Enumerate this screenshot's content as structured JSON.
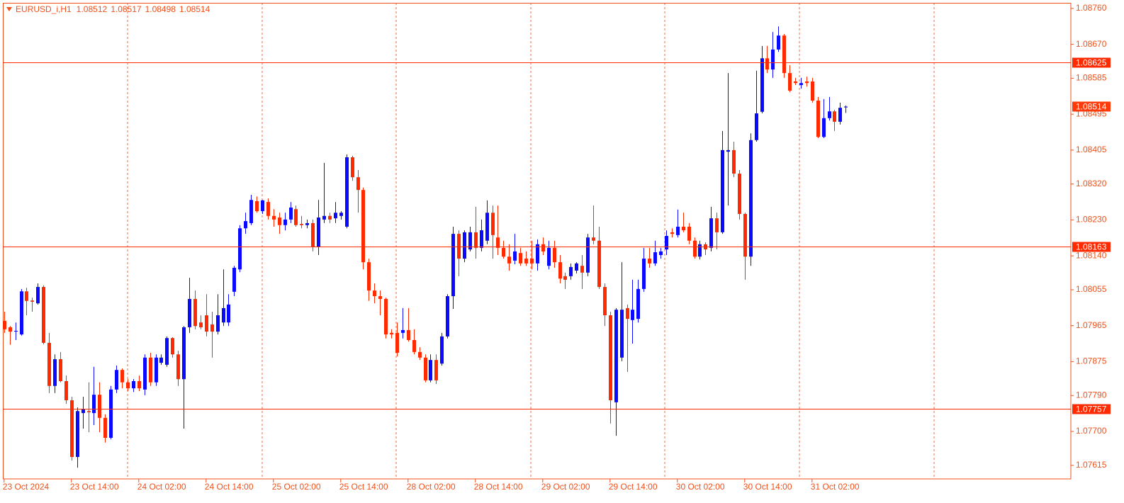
{
  "chart_data": {
    "type": "candlestick",
    "title": "EURUSD_i,H1",
    "up_color": "#0a0aff",
    "down_color": "#ff2a00",
    "level_color": "#ff2a00",
    "ylim": [
      1.07581,
      1.08774
    ],
    "yticks": [
      {
        "value": 1.0876,
        "label": "1.08760"
      },
      {
        "value": 1.0867,
        "label": "1.08670"
      },
      1.08585,
      1.08495,
      1.08405,
      {
        "value": 1.0832,
        "label": "1.08320"
      },
      {
        "value": 1.0823,
        "label": "1.08230"
      },
      {
        "value": 1.0814,
        "label": "1.08140"
      },
      1.08055,
      1.07965,
      1.07875,
      {
        "value": 1.0779,
        "label": "1.07790"
      },
      {
        "value": 1.077,
        "label": "1.07700"
      },
      1.07615
    ],
    "levels": [
      1.08625,
      1.08163,
      1.07757
    ],
    "categories": [
      "23 Oct 2024",
      null,
      null,
      null,
      null,
      null,
      null,
      null,
      null,
      null,
      null,
      null,
      "23 Oct 14:00",
      null,
      null,
      null,
      null,
      null,
      null,
      null,
      null,
      null,
      null,
      null,
      "24 Oct 02:00",
      null,
      null,
      null,
      null,
      null,
      null,
      null,
      null,
      null,
      null,
      null,
      "24 Oct 14:00",
      null,
      null,
      null,
      null,
      null,
      null,
      null,
      null,
      null,
      null,
      null,
      "25 Oct 02:00",
      null,
      null,
      null,
      null,
      null,
      null,
      null,
      null,
      null,
      null,
      null,
      "25 Oct 14:00",
      null,
      null,
      null,
      null,
      null,
      null,
      null,
      null,
      null,
      null,
      null,
      "28 Oct 02:00",
      null,
      null,
      null,
      null,
      null,
      null,
      null,
      null,
      null,
      null,
      null,
      "28 Oct 14:00",
      null,
      null,
      null,
      null,
      null,
      null,
      null,
      null,
      null,
      null,
      null,
      "29 Oct 02:00",
      null,
      null,
      null,
      null,
      null,
      null,
      null,
      null,
      null,
      null,
      null,
      "29 Oct 14:00",
      null,
      null,
      null,
      null,
      null,
      null,
      null,
      null,
      null,
      null,
      null,
      "30 Oct 02:00",
      null,
      null,
      null,
      null,
      null,
      null,
      null,
      null,
      null,
      null,
      null,
      "30 Oct 14:00",
      null,
      null,
      null,
      null,
      null,
      null,
      null,
      null,
      null,
      null,
      null,
      "31 Oct 02:00",
      null,
      null,
      null,
      null,
      null,
      null
    ],
    "open": [
      1.07977,
      1.07961,
      1.07952,
      1.07943,
      1.08051,
      1.08028,
      1.08021,
      1.08062,
      1.07922,
      1.07814,
      1.07881,
      1.07826,
      1.07778,
      1.07636,
      1.07746,
      1.07751,
      1.07746,
      1.07792,
      1.07734,
      1.07684,
      1.07805,
      1.07854,
      1.07823,
      1.07808,
      1.07826,
      1.07805,
      1.07885,
      1.07823,
      1.07872,
      1.07867,
      1.07934,
      1.07893,
      1.07831,
      1.07961,
      1.08032,
      1.07973,
      1.07991,
      1.07968,
      1.0795,
      1.07973,
      1.07973,
      1.0805,
      1.08106,
      1.08209,
      1.08222,
      1.08277,
      1.08252,
      1.08275,
      1.0824,
      1.08236,
      1.08217,
      1.08231,
      1.08257,
      1.0822,
      1.08217,
      1.08222,
      1.08163,
      1.08231,
      1.0824,
      1.08234,
      1.0824,
      1.08213,
      1.08387,
      1.08337,
      1.08305,
      1.08124,
      1.08053,
      1.08039,
      1.08032,
      1.07947,
      1.07947,
      1.07947,
      1.07954,
      1.07929,
      1.07899,
      1.07885,
      1.07828,
      1.07879,
      1.0787,
      1.07938,
      1.08039,
      1.08195,
      1.08133,
      1.08156,
      1.08199,
      1.0816,
      1.08178,
      1.08248,
      1.08186,
      1.0816,
      1.08138,
      1.08128,
      1.08147,
      1.08133,
      1.08133,
      1.08121,
      1.08169,
      1.08115,
      1.0816,
      1.08124,
      1.08089,
      1.08089,
      1.08103,
      1.08115,
      1.08098,
      1.08186,
      1.08178,
      1.08062,
      1.07991,
      1.07773,
      1.07885,
      1.08009,
      1.07979,
      1.07982,
      1.08057,
      1.08133,
      1.08121,
      1.08142,
      1.08156,
      1.08199,
      1.08192,
      1.08213,
      1.08213,
      1.08178,
      1.08138,
      1.08169,
      1.0816,
      1.08234,
      1.08199,
      1.08401,
      1.08405,
      1.08346,
      1.08245,
      1.08138,
      1.0843,
      1.08501,
      1.08635,
      1.08607,
      1.08657,
      1.08692,
      1.08598,
      1.08577,
      1.08568,
      1.08577,
      1.08577,
      1.08529,
      1.08438,
      1.08485,
      1.08502,
      1.08476,
      1.08512
    ],
    "high": [
      1.08,
      1.07964,
      1.07973,
      1.08057,
      1.0806,
      1.08035,
      1.08071,
      1.08066,
      1.07947,
      1.07893,
      1.07899,
      1.0784,
      1.07787,
      1.0776,
      1.07787,
      1.07823,
      1.07862,
      1.07823,
      1.07743,
      1.07814,
      1.07865,
      1.07858,
      1.07831,
      1.07831,
      1.0784,
      1.07893,
      1.07897,
      1.07893,
      1.07893,
      1.07938,
      1.07936,
      1.07902,
      1.07964,
      1.08085,
      1.08053,
      1.07991,
      1.08044,
      1.08,
      1.08044,
      1.08106,
      1.08044,
      1.08115,
      1.08217,
      1.08248,
      1.08293,
      1.08289,
      1.0828,
      1.08284,
      1.08257,
      1.08248,
      1.08248,
      1.08275,
      1.08266,
      1.0824,
      1.08231,
      1.08231,
      1.0828,
      1.08373,
      1.08248,
      1.08275,
      1.08252,
      1.08394,
      1.08391,
      1.08355,
      1.08311,
      1.08133,
      1.08071,
      1.08053,
      1.08035,
      1.07956,
      1.07973,
      1.08009,
      1.08009,
      1.07956,
      1.07911,
      1.07893,
      1.07893,
      1.07893,
      1.07947,
      1.08044,
      1.08213,
      1.08204,
      1.08204,
      1.08213,
      1.08263,
      1.08231,
      1.08279,
      1.08266,
      1.08266,
      1.08178,
      1.08169,
      1.08195,
      1.0816,
      1.08151,
      1.08178,
      1.08181,
      1.08186,
      1.08178,
      1.08178,
      1.08142,
      1.08098,
      1.08121,
      1.08124,
      1.08142,
      1.08195,
      1.08266,
      1.08213,
      1.08071,
      1.08,
      1.08009,
      1.08124,
      1.08018,
      1.0808,
      1.0808,
      1.0816,
      1.0816,
      1.08178,
      1.0816,
      1.08204,
      1.08209,
      1.08256,
      1.08248,
      1.08222,
      1.08186,
      1.08178,
      1.08174,
      1.08263,
      1.08248,
      1.08453,
      1.08598,
      1.08426,
      1.08355,
      1.08248,
      1.08447,
      1.08604,
      1.08666,
      1.08666,
      1.08701,
      1.08715,
      1.08696,
      1.08618,
      1.08586,
      1.08586,
      1.08589,
      1.08586,
      1.08538,
      1.08533,
      1.08538,
      1.08506,
      1.08524,
      1.08517
    ],
    "low": [
      1.07947,
      1.07917,
      1.07929,
      1.0794,
      1.07991,
      1.08,
      1.08018,
      1.07918,
      1.07796,
      1.07796,
      1.07823,
      1.07769,
      1.07627,
      1.07609,
      1.07707,
      1.07698,
      1.07716,
      1.07698,
      1.07672,
      1.0768,
      1.07796,
      1.07808,
      1.07801,
      1.07799,
      1.07801,
      1.07791,
      1.07814,
      1.07814,
      1.07867,
      1.07862,
      1.07885,
      1.07814,
      1.07707,
      1.07947,
      1.07956,
      1.07956,
      1.07938,
      1.07885,
      1.07943,
      1.07964,
      1.07964,
      1.08039,
      1.08099,
      1.08195,
      1.08217,
      1.08248,
      1.08245,
      1.08231,
      1.08213,
      1.08195,
      1.08204,
      1.08222,
      1.08213,
      1.08209,
      1.08209,
      1.08151,
      1.08142,
      1.08222,
      1.08222,
      1.08222,
      1.08231,
      1.08209,
      1.08328,
      1.08248,
      1.08106,
      1.08027,
      1.08021,
      1.07991,
      1.07933,
      1.07933,
      1.07888,
      1.07933,
      1.07925,
      1.07893,
      1.07879,
      1.07823,
      1.07823,
      1.07819,
      1.07865,
      1.07933,
      1.08007,
      1.08089,
      1.08124,
      1.08151,
      1.08133,
      1.08151,
      1.08169,
      1.08133,
      1.08142,
      1.08133,
      1.08103,
      1.08119,
      1.08115,
      1.08115,
      1.08106,
      1.08103,
      1.08142,
      1.08106,
      1.0811,
      1.08071,
      1.08057,
      1.0808,
      1.08096,
      1.08057,
      1.08089,
      1.08169,
      1.08057,
      1.07964,
      1.0772,
      1.07689,
      1.07876,
      1.07849,
      1.0792,
      1.07973,
      1.0805,
      1.0811,
      1.08115,
      1.08133,
      1.08142,
      1.08186,
      1.08186,
      1.08199,
      1.08169,
      1.08133,
      1.08131,
      1.08142,
      1.08151,
      1.08156,
      1.08195,
      1.08266,
      1.08337,
      1.08231,
      1.0808,
      1.08115,
      1.08426,
      1.08497,
      1.08598,
      1.08586,
      1.08651,
      1.08586,
      1.0855,
      1.08568,
      1.08559,
      1.08564,
      1.08524,
      1.08435,
      1.08435,
      1.08479,
      1.08453,
      1.08469,
      1.08498
    ],
    "close": [
      1.07956,
      1.0795,
      1.07952,
      1.08051,
      1.08027,
      1.08025,
      1.08062,
      1.07922,
      1.07814,
      1.07881,
      1.07826,
      1.07778,
      1.07636,
      1.07751,
      1.07755,
      1.07748,
      1.07792,
      1.07734,
      1.07684,
      1.07805,
      1.07854,
      1.07823,
      1.07808,
      1.07826,
      1.07808,
      1.07885,
      1.07823,
      1.07885,
      1.07885,
      1.07934,
      1.07893,
      1.07831,
      1.07961,
      1.08032,
      1.07964,
      1.07961,
      1.0795,
      1.0795,
      1.07991,
      1.08009,
      1.08018,
      1.0811,
      1.08209,
      1.08227,
      1.0828,
      1.08252,
      1.08279,
      1.0824,
      1.08231,
      1.08217,
      1.08231,
      1.08261,
      1.08217,
      1.08217,
      1.08222,
      1.08163,
      1.08236,
      1.0824,
      1.08231,
      1.08248,
      1.08248,
      1.08387,
      1.08337,
      1.08305,
      1.08124,
      1.08053,
      1.08039,
      1.08032,
      1.07943,
      1.07943,
      1.07897,
      1.07954,
      1.07929,
      1.07899,
      1.07885,
      1.07828,
      1.07879,
      1.07828,
      1.07938,
      1.08039,
      1.08195,
      1.08133,
      1.08199,
      1.08199,
      1.0816,
      1.08204,
      1.08248,
      1.08192,
      1.0816,
      1.08138,
      1.08121,
      1.08151,
      1.08121,
      1.08121,
      1.08121,
      1.08169,
      1.08151,
      1.0816,
      1.08124,
      1.08083,
      1.0808,
      1.08112,
      1.08121,
      1.08098,
      1.08186,
      1.08178,
      1.08062,
      1.07991,
      1.07778,
      1.08005,
      1.08005,
      1.07982,
      1.08005,
      1.08057,
      1.08133,
      1.08121,
      1.08149,
      1.08151,
      1.0819,
      1.08195,
      1.08213,
      1.08204,
      1.08178,
      1.08138,
      1.08169,
      1.08156,
      1.08234,
      1.08199,
      1.08405,
      1.08405,
      1.08346,
      1.08245,
      1.08138,
      1.0843,
      1.08497,
      1.08635,
      1.08607,
      1.08657,
      1.08692,
      1.08598,
      1.08554,
      1.08573,
      1.08573,
      1.08573,
      1.08529,
      1.08438,
      1.08485,
      1.08502,
      1.08476,
      1.08511,
      1.08514
    ]
  }
}
